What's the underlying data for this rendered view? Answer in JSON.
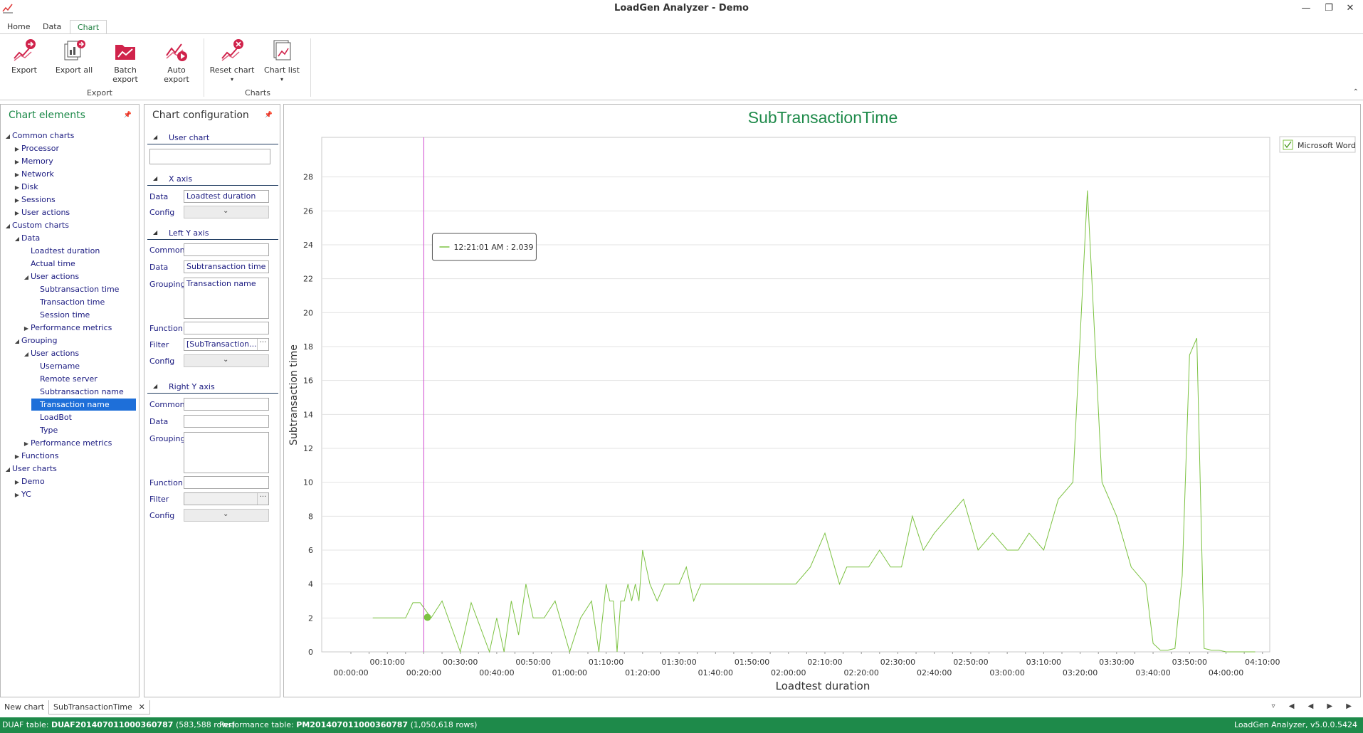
{
  "window": {
    "title": "LoadGen Analyzer - Demo"
  },
  "ribbon": {
    "tabs": [
      "Home",
      "Data",
      "Chart"
    ],
    "active_tab": "Chart",
    "groups": [
      {
        "label": "Export",
        "buttons": [
          "Export",
          "Export all",
          "Batch export",
          "Auto export"
        ]
      },
      {
        "label": "Charts",
        "buttons": [
          "Reset chart",
          "Chart list"
        ]
      }
    ]
  },
  "left_panel": {
    "title": "Chart elements",
    "tree": [
      {
        "label": "Common charts",
        "arrow": "down",
        "level": 0
      },
      {
        "label": "Processor",
        "arrow": "right",
        "level": 1
      },
      {
        "label": "Memory",
        "arrow": "right",
        "level": 1
      },
      {
        "label": "Network",
        "arrow": "right",
        "level": 1
      },
      {
        "label": "Disk",
        "arrow": "right",
        "level": 1
      },
      {
        "label": "Sessions",
        "arrow": "right",
        "level": 1
      },
      {
        "label": "User actions",
        "arrow": "right",
        "level": 1
      },
      {
        "label": "Custom charts",
        "arrow": "down",
        "level": 0
      },
      {
        "label": "Data",
        "arrow": "down",
        "level": 1
      },
      {
        "label": "Loadtest duration",
        "arrow": "",
        "level": 2
      },
      {
        "label": "Actual time",
        "arrow": "",
        "level": 2
      },
      {
        "label": "User actions",
        "arrow": "down",
        "level": 2
      },
      {
        "label": "Subtransaction time",
        "arrow": "",
        "level": 3
      },
      {
        "label": "Transaction time",
        "arrow": "",
        "level": 3
      },
      {
        "label": "Session time",
        "arrow": "",
        "level": 3
      },
      {
        "label": "Performance metrics",
        "arrow": "right",
        "level": 2
      },
      {
        "label": "Grouping",
        "arrow": "down",
        "level": 1
      },
      {
        "label": "User actions",
        "arrow": "down",
        "level": 2
      },
      {
        "label": "Username",
        "arrow": "",
        "level": 3
      },
      {
        "label": "Remote server",
        "arrow": "",
        "level": 3
      },
      {
        "label": "Subtransaction name",
        "arrow": "",
        "level": 3
      },
      {
        "label": "Transaction name",
        "arrow": "",
        "level": 3,
        "selected": true
      },
      {
        "label": "LoadBot",
        "arrow": "",
        "level": 3
      },
      {
        "label": "Type",
        "arrow": "",
        "level": 3
      },
      {
        "label": "Performance metrics",
        "arrow": "right",
        "level": 2
      },
      {
        "label": "Functions",
        "arrow": "right",
        "level": 1
      },
      {
        "label": "User charts",
        "arrow": "down",
        "level": 0
      },
      {
        "label": "Demo",
        "arrow": "right",
        "level": 1
      },
      {
        "label": "YC",
        "arrow": "right",
        "level": 1
      }
    ]
  },
  "config_panel": {
    "title": "Chart configuration",
    "sections": {
      "user_chart": "User chart",
      "x_axis": "X axis",
      "left_y": "Left Y axis",
      "right_y": "Right Y axis"
    },
    "labels": {
      "data": "Data",
      "config": "Config",
      "common": "Common",
      "grouping": "Grouping",
      "function": "Function",
      "filter": "Filter"
    },
    "x_data": "Loadtest duration",
    "left_data": "Subtransaction time",
    "left_grouping": "Transaction name",
    "left_filter": "[SubTransaction...",
    "ellipsis": "···"
  },
  "chart_data": {
    "type": "line",
    "title": "SubTransactionTime",
    "xlabel": "Loadtest duration",
    "ylabel": "Subtransaction time",
    "ylim": [
      0,
      30
    ],
    "yticks": [
      0,
      2,
      4,
      6,
      8,
      10,
      12,
      14,
      16,
      18,
      20,
      22,
      24,
      26,
      28
    ],
    "xticks_top": [
      "00:10:00",
      "00:30:00",
      "00:50:00",
      "01:10:00",
      "01:30:00",
      "01:50:00",
      "02:10:00",
      "02:30:00",
      "02:50:00",
      "03:10:00",
      "03:30:00",
      "03:50:00",
      "04:10:00"
    ],
    "xticks_bottom": [
      "00:00:00",
      "00:20:00",
      "00:40:00",
      "01:00:00",
      "01:20:00",
      "01:40:00",
      "02:00:00",
      "02:20:00",
      "02:40:00",
      "03:00:00",
      "03:20:00",
      "03:40:00",
      "04:00:00"
    ],
    "xlim_minutes": [
      -8,
      252
    ],
    "grid": "horizontal",
    "legend_position": "top-right",
    "series": [
      {
        "name": "Microsoft Word",
        "color": "#7cc242",
        "x_minutes": [
          6,
          15,
          17,
          19,
          22,
          25,
          30,
          33,
          38,
          40,
          42,
          44,
          46,
          48,
          50,
          53,
          56,
          60,
          63,
          66,
          68,
          70,
          71,
          72,
          73,
          74,
          75,
          76,
          77,
          78,
          79,
          80,
          82,
          84,
          86,
          88,
          90,
          92,
          94,
          96,
          98,
          100,
          103,
          106,
          110,
          114,
          118,
          122,
          126,
          130,
          134,
          136,
          138,
          140,
          142,
          145,
          148,
          151,
          154,
          157,
          160,
          164,
          168,
          172,
          176,
          180,
          183,
          186,
          190,
          194,
          198,
          202,
          206,
          210,
          214,
          218,
          220,
          222,
          224,
          226,
          228,
          230,
          232,
          234,
          236,
          238,
          240,
          241,
          242,
          243,
          244,
          245,
          246,
          248
        ],
        "values": [
          2,
          2,
          2.9,
          2.9,
          2.0,
          3.0,
          0,
          2.9,
          0,
          2.0,
          0,
          3.0,
          1,
          4.0,
          2.0,
          2.0,
          3.0,
          0,
          2.0,
          3.0,
          0,
          4.0,
          3.0,
          3.0,
          0,
          3.0,
          3.0,
          4.0,
          3.0,
          4.0,
          3.0,
          6.0,
          4.0,
          3.0,
          4.0,
          4.0,
          4.0,
          5.0,
          3.0,
          4.0,
          4.0,
          4.0,
          4.0,
          4.0,
          4.0,
          4.0,
          4.0,
          4.0,
          5.0,
          7.0,
          4.0,
          5.0,
          5.0,
          5.0,
          5.0,
          6.0,
          5.0,
          5.0,
          8.0,
          6.0,
          7.0,
          8.0,
          9.0,
          6.0,
          7.0,
          6.0,
          6.0,
          7.0,
          6.0,
          9.0,
          10.0,
          27.2,
          10.0,
          8.0,
          5.0,
          4.0,
          0.5,
          0.1,
          0.1,
          0.2,
          4.5,
          17.5,
          18.5,
          0.2,
          0.1,
          0.1,
          0,
          0,
          0,
          0,
          0,
          0,
          0,
          0
        ]
      }
    ],
    "cursor_x_minutes": 20,
    "tooltip": "12:21:01 AM : 2.039",
    "highlight_point": {
      "x_minutes": 21,
      "value": 2.039
    }
  },
  "doc_tabs": [
    "New chart",
    "SubTransactionTime"
  ],
  "status": {
    "duaf_label": "DUAF table:",
    "duaf_value": "DUAF201407011000360787",
    "duaf_rows": "(583,588 rows)",
    "perf_label": "Performance table:",
    "perf_value": "PM201407011000360787",
    "perf_rows": "(1,050,618 rows)",
    "version": "LoadGen Analyzer, v5.0.0.5424"
  }
}
